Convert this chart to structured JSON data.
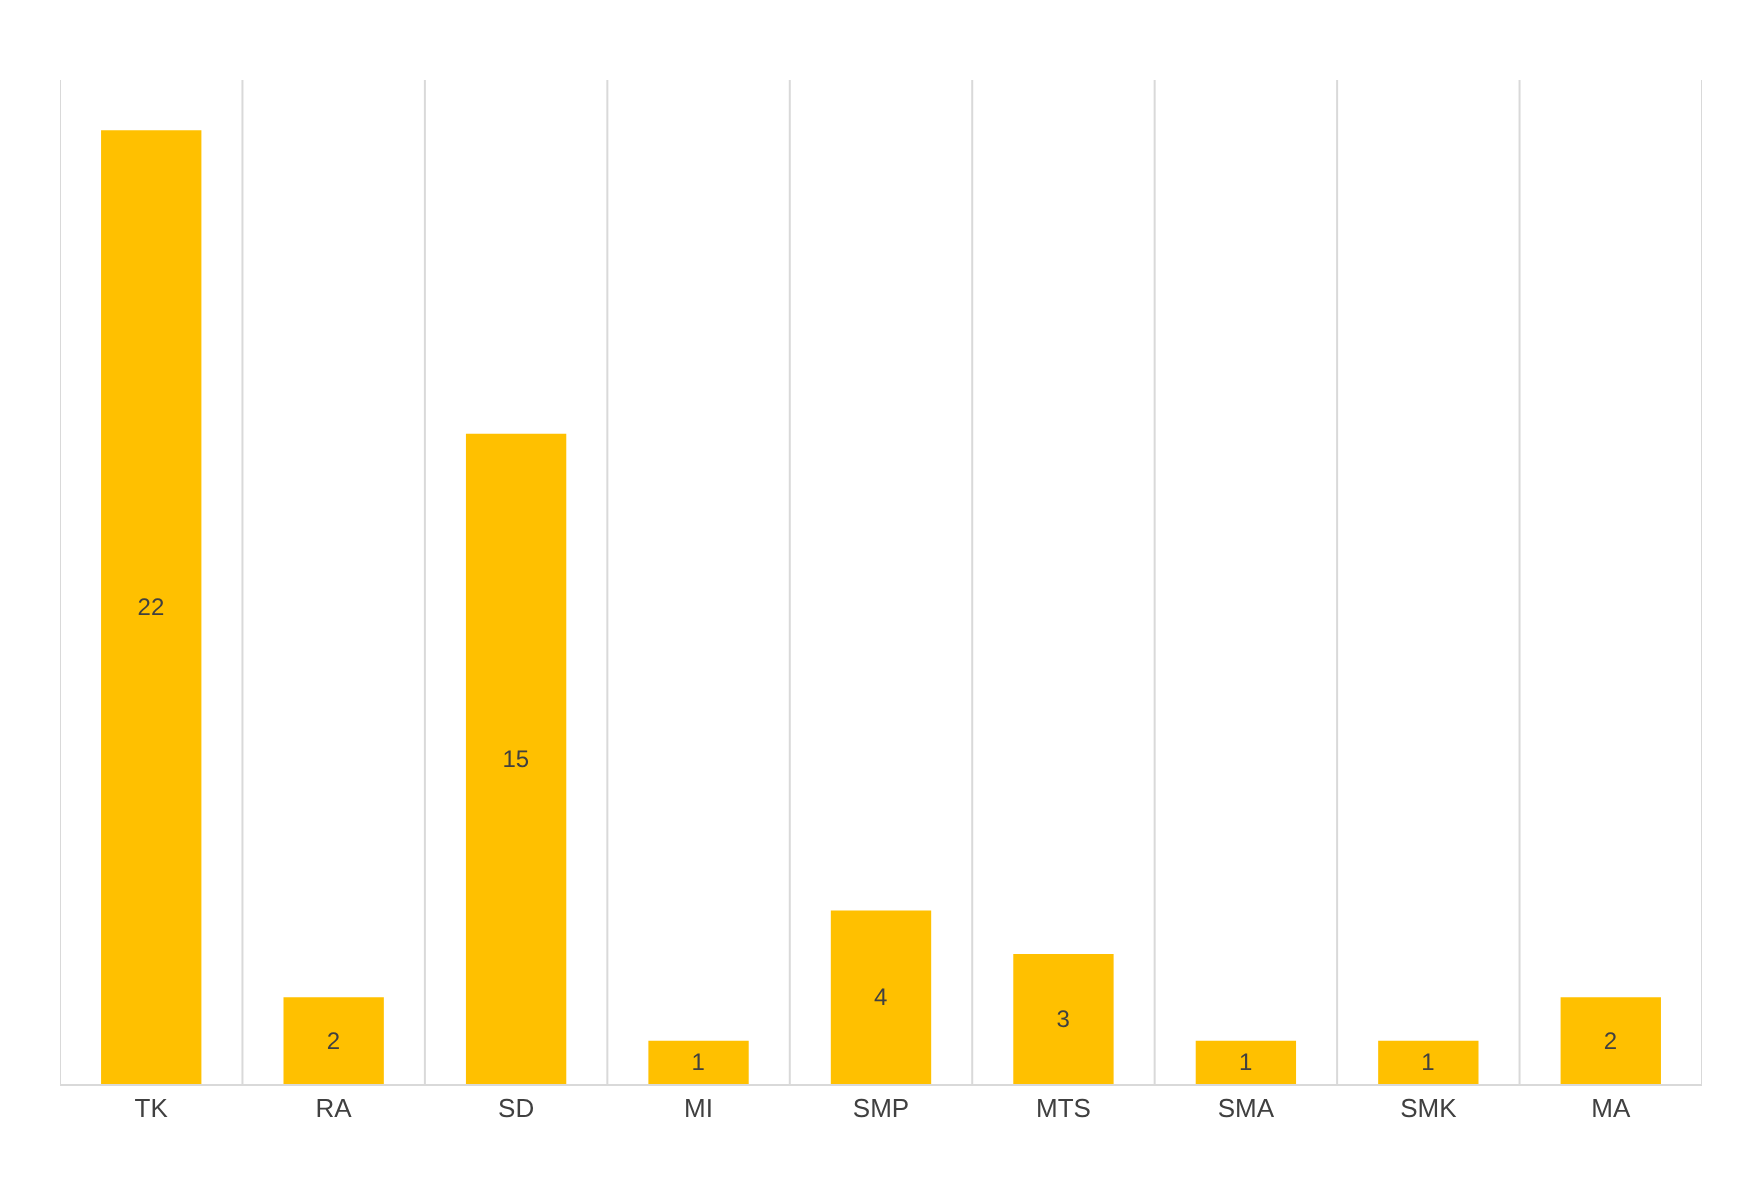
{
  "chart_data": {
    "type": "bar",
    "categories": [
      "TK",
      "RA",
      "SD",
      "MI",
      "SMP",
      "MTS",
      "SMA",
      "SMK",
      "MA"
    ],
    "values": [
      22,
      2,
      15,
      1,
      4,
      3,
      1,
      1,
      2
    ],
    "color": "#ffc000",
    "data_labels": true,
    "grid": "x",
    "legend": false
  }
}
